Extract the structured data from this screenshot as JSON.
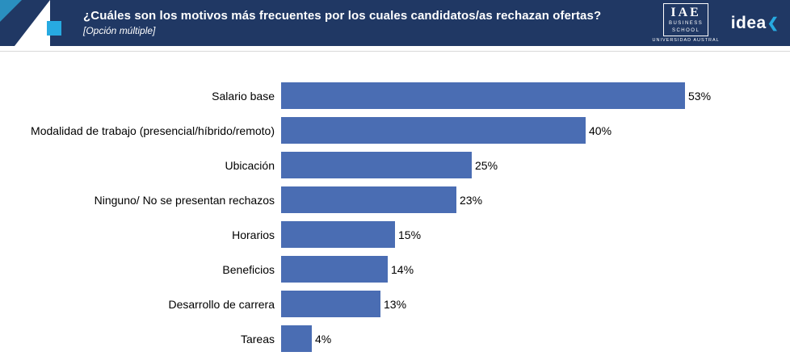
{
  "header": {
    "title": "¿Cuáles son los motivos más frecuentes por los cuales candidatos/as rechazan ofertas?",
    "subtitle": "[Opción múltiple]",
    "logos": {
      "iae_main": "IAE",
      "iae_sub1": "BUSINESS",
      "iae_sub2": "SCHOOL",
      "iae_caption": "UNIVERSIDAD AUSTRAL",
      "idea_text": "idea",
      "idea_chevron": "❮"
    }
  },
  "colors": {
    "banner": "#203864",
    "bar": "#4a6db3",
    "accent_cyan": "#27aae1",
    "deco_teal": "#2a8fbf"
  },
  "chart_data": {
    "type": "bar",
    "orientation": "horizontal",
    "title": "¿Cuáles son los motivos más frecuentes por los cuales candidatos/as rechazan ofertas?",
    "subtitle": "[Opción múltiple]",
    "categories": [
      "Salario base",
      "Modalidad de trabajo (presencial/híbrido/remoto)",
      "Ubicación",
      "Ninguno/ No se presentan rechazos",
      "Horarios",
      "Beneficios",
      "Desarrollo de carrera",
      "Tareas"
    ],
    "values": [
      53,
      40,
      25,
      23,
      15,
      14,
      13,
      4
    ],
    "value_labels": [
      "53%",
      "40%",
      "25%",
      "23%",
      "15%",
      "14%",
      "13%",
      "4%"
    ],
    "xlabel": "",
    "ylabel": "",
    "xlim": [
      0,
      56
    ],
    "grid": false,
    "legend": false,
    "data_labels": "outside-end"
  }
}
